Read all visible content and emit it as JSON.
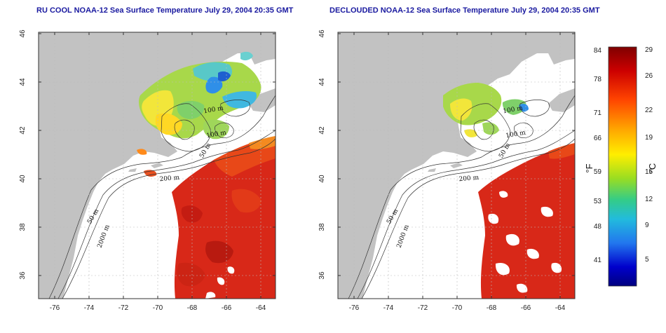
{
  "titles": {
    "left": "RU COOL NOAA-12 Sea Surface Temperature July 29, 2004 20:35 GMT",
    "right": "DECLOUDED NOAA-12 Sea Surface Temperature July 29, 2004 20:35 GMT"
  },
  "axes": {
    "lon_ticks": [
      "-76",
      "-74",
      "-72",
      "-70",
      "-68",
      "-66",
      "-64"
    ],
    "lat_ticks": [
      "46",
      "44",
      "42",
      "40",
      "38",
      "36"
    ]
  },
  "isobaths": {
    "left": [
      "100 m",
      "100 m",
      "50 m",
      "200 m",
      "50 m",
      "2000 m"
    ],
    "right": [
      "100 m",
      "100 m",
      "50 m",
      "200 m",
      "50 m",
      "2000 m"
    ]
  },
  "colorbar": {
    "f_ticks": [
      "84",
      "78",
      "71",
      "66",
      "59",
      "53",
      "48",
      "41"
    ],
    "c_ticks": [
      "29",
      "26",
      "22",
      "19",
      "15",
      "12",
      "9",
      "5"
    ],
    "f_label": "°F",
    "c_label": "°C",
    "colors": [
      "#7f0000",
      "#cc0000",
      "#ff4400",
      "#ffaa00",
      "#ffee00",
      "#99dd22",
      "#33cc88",
      "#22bbdd",
      "#2277ee",
      "#0000cc",
      "#00007f"
    ]
  }
}
